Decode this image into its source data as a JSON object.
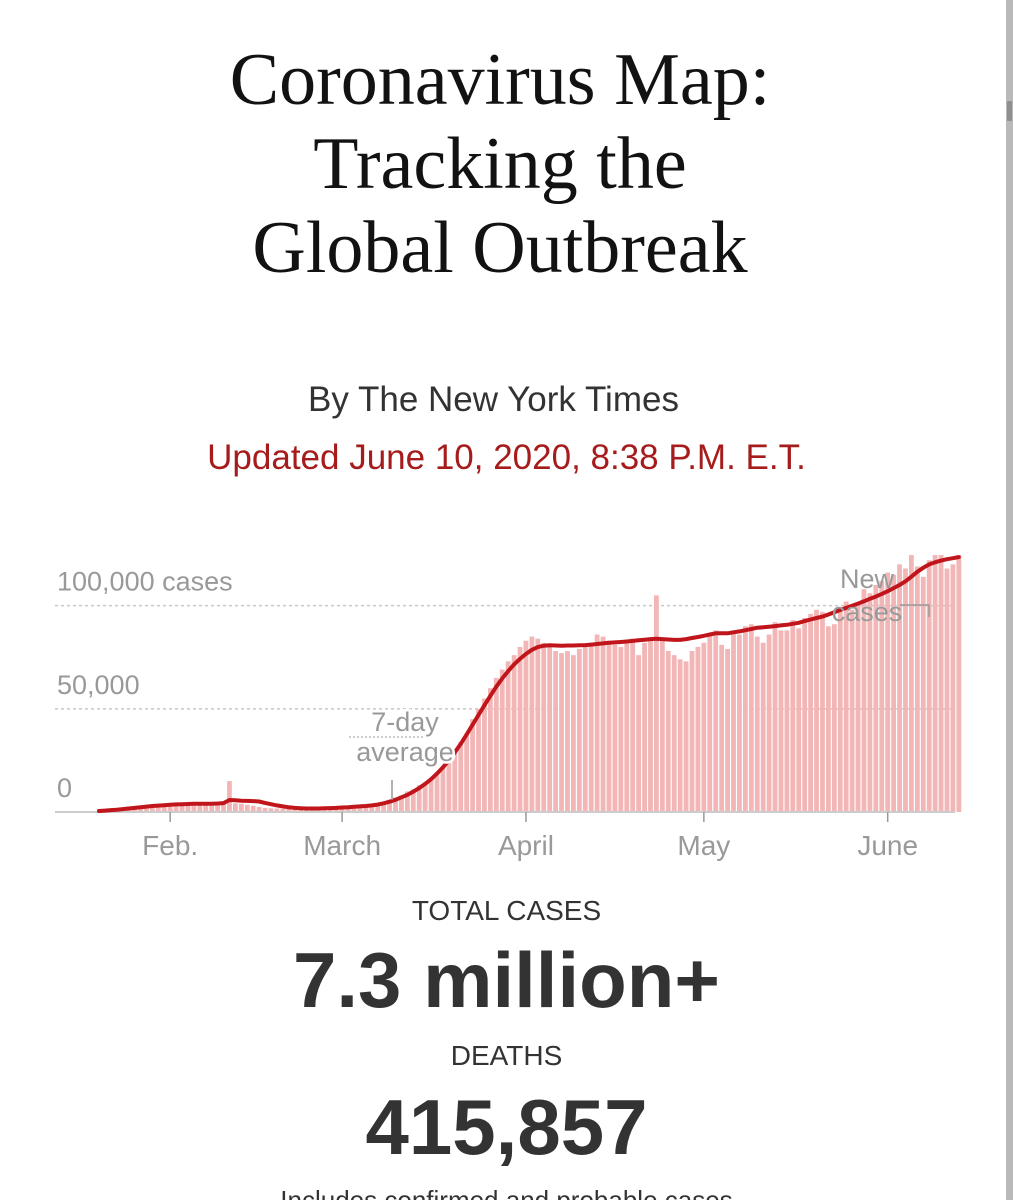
{
  "article": {
    "headline_lines": [
      "Coronavirus Map:",
      "Tracking the",
      "Global Outbreak"
    ],
    "byline": "By The New York Times",
    "updated": "Updated June 10, 2020, 8:38 P.M. E.T."
  },
  "colors": {
    "accent_red": "#a61b1b",
    "line_red": "#c0151b",
    "bar_pink": "#f3b6b6",
    "text_dark": "#333333",
    "axis_gray": "#999999"
  },
  "chart_data": {
    "type": "bar",
    "title": "",
    "xlabel": "",
    "ylabel": "",
    "ylim": [
      0,
      110000
    ],
    "y_ticks": [
      {
        "value": 100000,
        "label": "100,000 cases"
      },
      {
        "value": 50000,
        "label": "50,000"
      },
      {
        "value": 0,
        "label": "0"
      }
    ],
    "x_ticks": [
      {
        "day": 12,
        "label": "Feb."
      },
      {
        "day": 41,
        "label": "March"
      },
      {
        "day": 72,
        "label": "April"
      },
      {
        "day": 102,
        "label": "May"
      },
      {
        "day": 133,
        "label": "June"
      }
    ],
    "series": [
      {
        "name": "New cases",
        "kind": "bar",
        "start_day": 0,
        "values": [
          500,
          700,
          800,
          1200,
          1500,
          1800,
          2100,
          2400,
          2800,
          3000,
          3200,
          3400,
          3600,
          3800,
          4000,
          4100,
          4200,
          4000,
          3800,
          4200,
          4500,
          4600,
          15000,
          4200,
          4000,
          3500,
          3000,
          2500,
          2000,
          1800,
          1700,
          1600,
          1500,
          1500,
          1500,
          1600,
          1800,
          1800,
          2000,
          2200,
          2400,
          2300,
          2500,
          2800,
          3000,
          3200,
          3500,
          4000,
          5000,
          6000,
          7000,
          8000,
          10000,
          11000,
          13000,
          14000,
          16000,
          18000,
          22000,
          26000,
          30000,
          34000,
          38000,
          45000,
          50000,
          55000,
          60000,
          65000,
          69000,
          73000,
          76000,
          80000,
          83000,
          85000,
          84000,
          82000,
          80000,
          78000,
          77000,
          78000,
          76000,
          79000,
          80000,
          82000,
          86000,
          85000,
          83000,
          81000,
          80000,
          82000,
          84000,
          76000,
          82000,
          83000,
          105000,
          84000,
          78000,
          76000,
          74000,
          73000,
          78000,
          80000,
          82000,
          86000,
          88000,
          81000,
          79000,
          88000,
          86000,
          90000,
          91000,
          85000,
          82000,
          86000,
          92000,
          88000,
          88000,
          93000,
          89000,
          94000,
          96000,
          98000,
          97000,
          90000,
          91000,
          99000,
          102000,
          98000,
          100000,
          108000,
          106000,
          110000,
          112000,
          116000,
          115000,
          120000,
          118000,
          126000,
          119000,
          114000,
          122000,
          128000,
          127000,
          118000,
          120000,
          125000
        ]
      },
      {
        "name": "7-day average",
        "kind": "line",
        "start_day": 0,
        "values": [
          500,
          700,
          900,
          1100,
          1400,
          1700,
          2000,
          2300,
          2600,
          2900,
          3100,
          3300,
          3500,
          3700,
          3800,
          3900,
          4000,
          4000,
          4000,
          4000,
          4100,
          4300,
          5800,
          5700,
          5500,
          5400,
          5300,
          5100,
          4400,
          3800,
          3200,
          2700,
          2300,
          2000,
          1800,
          1700,
          1700,
          1700,
          1800,
          1900,
          2000,
          2200,
          2300,
          2500,
          2700,
          2900,
          3200,
          3600,
          4200,
          5000,
          5900,
          7100,
          8300,
          9900,
          11600,
          13600,
          15900,
          18600,
          21600,
          25000,
          28900,
          33000,
          37600,
          42300,
          47000,
          51700,
          56300,
          60700,
          64700,
          68300,
          71500,
          74200,
          76600,
          78600,
          79900,
          80600,
          80800,
          80700,
          80600,
          80700,
          80700,
          80800,
          80900,
          81100,
          81400,
          81700,
          82000,
          82200,
          82400,
          82600,
          82900,
          83200,
          83500,
          83800,
          84000,
          83800,
          83600,
          83400,
          83400,
          83800,
          84300,
          84800,
          85400,
          86000,
          86600,
          86600,
          86600,
          87100,
          87500,
          88100,
          88700,
          89300,
          89500,
          89800,
          90100,
          90400,
          90700,
          91200,
          91700,
          92500,
          93300,
          94000,
          94700,
          95700,
          96800,
          97900,
          98900,
          99900,
          101000,
          102100,
          103300,
          104400,
          105700,
          107000,
          108500,
          110000,
          111800,
          114000,
          116400,
          118400,
          120000,
          121000,
          121800,
          122500,
          123000,
          123500
        ]
      }
    ],
    "annotations": [
      {
        "text": [
          "7-day",
          "average"
        ],
        "day": 44
      },
      {
        "text": [
          "New",
          "cases"
        ],
        "day": 137
      }
    ]
  },
  "stats": {
    "total_cases_label": "TOTAL CASES",
    "total_cases_value": "7.3 million+",
    "deaths_label": "DEATHS",
    "deaths_value": "415,857"
  },
  "footer": {
    "cut_off_text": "Includes confirmed and probable cases"
  }
}
